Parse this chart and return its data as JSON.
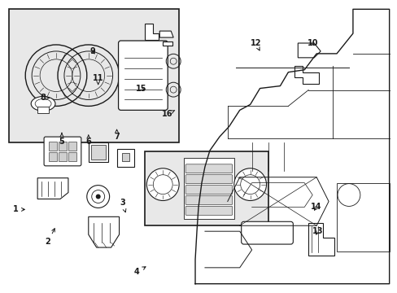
{
  "bg_color": "#ffffff",
  "line_color": "#1a1a1a",
  "box_fill": "#e8e8e8",
  "fig_width": 4.89,
  "fig_height": 3.6,
  "dpi": 100
}
